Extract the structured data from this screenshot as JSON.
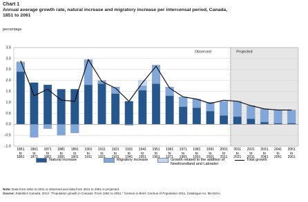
{
  "chart_data": {
    "type": "bar",
    "kicker": "Chart 1",
    "title": "Annual average growth rate, natural increase and migratory increase per intercensal period, Canada, 1851 to 2061",
    "y_label": "percentage",
    "categories": [
      "1851 to 1861",
      "1861 to 1871",
      "1871 to 1881",
      "1881 to 1891",
      "1891 to 1901",
      "1901 to 1911",
      "1911 to 1921",
      "1921 to 1931",
      "1931 to 1941",
      "1941 to 1951",
      "1951 to 1961",
      "1961 to 1971",
      "1971 to 1981",
      "1981 to 1991",
      "1991 to 2001",
      "2001 to 2011",
      "2011 to 2021",
      "2021 to 2031",
      "2031 to 2041",
      "2041 to 2051",
      "2051 to 2061"
    ],
    "series": [
      {
        "name": "Natural increase",
        "color": "#25578f",
        "values": [
          2.4,
          1.9,
          1.8,
          1.6,
          1.6,
          1.8,
          1.85,
          1.4,
          1.05,
          1.55,
          1.85,
          1.3,
          0.8,
          0.75,
          0.6,
          0.4,
          0.35,
          0.25,
          0.1,
          0.05,
          0.05
        ]
      },
      {
        "name": "Migratory increase",
        "color": "#7fa7d9",
        "values": [
          0.45,
          -0.6,
          -0.2,
          -0.5,
          -0.4,
          1.15,
          0.15,
          0.3,
          -0.05,
          0.2,
          0.85,
          0.4,
          0.45,
          0.4,
          0.4,
          0.65,
          0.7,
          0.6,
          0.6,
          0.6,
          0.6
        ]
      },
      {
        "name": "Growth related to the addition of Newfoundland and Labrador",
        "color": "#c6d8ef",
        "values": [
          null,
          null,
          null,
          null,
          null,
          null,
          null,
          null,
          null,
          0.25,
          null,
          null,
          null,
          null,
          null,
          null,
          null,
          null,
          null,
          null,
          null
        ]
      },
      {
        "name": "Total growth",
        "type": "line",
        "color": "#000000",
        "values": [
          2.9,
          1.3,
          1.6,
          1.1,
          1.05,
          2.95,
          1.95,
          1.65,
          1.05,
          1.9,
          2.65,
          1.65,
          1.25,
          1.15,
          0.95,
          1.1,
          1.05,
          0.85,
          0.7,
          0.65,
          0.65
        ]
      }
    ],
    "ylim": [
      -1,
      3.5
    ],
    "yticks": [
      {
        "value": -1,
        "label": "-1.0"
      },
      -0.5,
      {
        "value": 0,
        "label": "0.0"
      },
      0.5,
      {
        "value": 1,
        "label": "1.0"
      },
      1.5,
      {
        "value": 2,
        "label": "2.0"
      },
      2.5,
      {
        "value": 3,
        "label": "3.0"
      },
      3.5
    ],
    "grid": true,
    "observed_label": "Observed",
    "projected_label": "Projected",
    "shaded_from": "2011 to 2021",
    "note_label": "Note:",
    "note_text": "Data from 1851 to 2011 is observed and data from 2011 to 2061 is projected.",
    "source_label": "Source:",
    "source_text": "Statistics Canada. 2012. \"Population growth in Canada: From 1851 to 2061,\" Census in Brief. Census of Population 2011, Catalogue no. 98-310-x."
  }
}
